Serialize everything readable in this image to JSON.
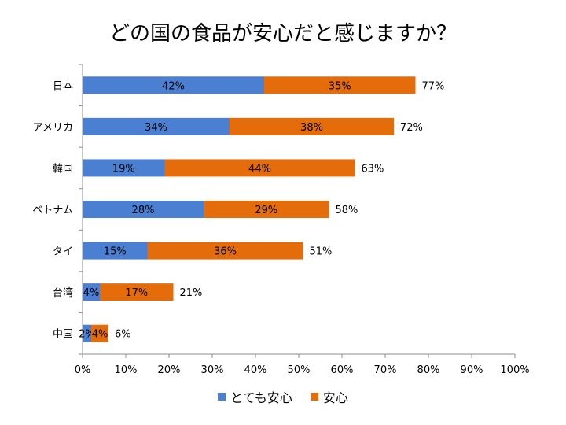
{
  "chart_data": {
    "type": "bar",
    "orientation": "horizontal",
    "stacked": true,
    "title": "どの国の食品が安心だと感じますか？",
    "categories": [
      "日本",
      "アメリカ",
      "韓国",
      "ベトナム",
      "タイ",
      "台湾",
      "中国"
    ],
    "series": [
      {
        "name": "とても安心",
        "color": "#4a7fd2",
        "values": [
          42,
          34,
          19,
          28,
          15,
          4,
          2
        ]
      },
      {
        "name": "安心",
        "color": "#e46c0a",
        "values": [
          35,
          38,
          44,
          29,
          36,
          17,
          4
        ]
      }
    ],
    "totals": [
      77,
      72,
      63,
      58,
      51,
      21,
      6
    ],
    "value_suffix": "%",
    "xlim": [
      0,
      100
    ],
    "xticks": [
      "0%",
      "10%",
      "20%",
      "30%",
      "40%",
      "50%",
      "60%",
      "70%",
      "80%",
      "90%",
      "100%"
    ],
    "grid": false,
    "legend": "bottom"
  }
}
